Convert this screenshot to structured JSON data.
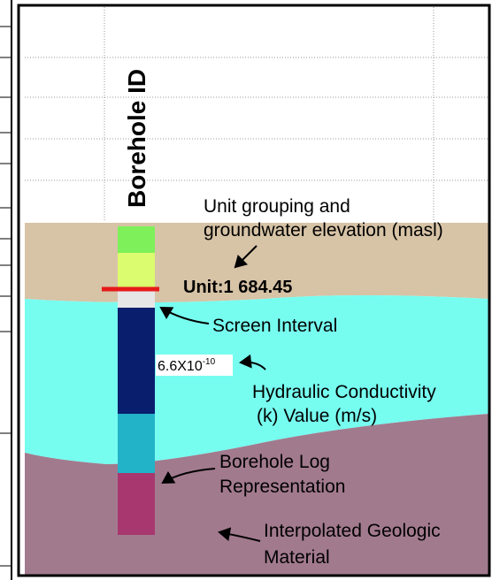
{
  "labels": {
    "borehole_id": "Borehole ID",
    "unit_grouping_1": "Unit grouping and",
    "unit_grouping_2": "groundwater elevation (masl)",
    "unit_value": "Unit:1 684.45",
    "screen_interval": "Screen Interval",
    "k_base": "6.6X10",
    "k_exponent": "-10",
    "hydraulic_1": "Hydraulic Conductivity",
    "hydraulic_2": "(k) Value (m/s)",
    "borehole_log_1": "Borehole Log",
    "borehole_log_2": "Representation",
    "interpolated_1": "Interpolated Geologic",
    "interpolated_2": "Material"
  }
}
